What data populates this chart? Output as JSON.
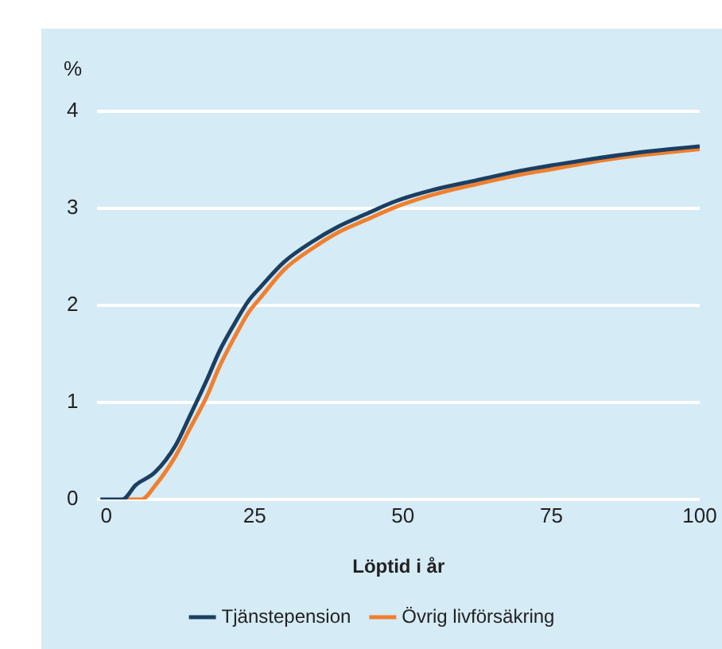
{
  "chart_data": {
    "type": "line",
    "xlabel": "Löptid i år",
    "ylabel": "%",
    "xlim": [
      -1.5,
      100
    ],
    "xticks": [
      0,
      25,
      50,
      75,
      100
    ],
    "ylim": [
      0,
      4
    ],
    "yticks": [
      0,
      1,
      2,
      3,
      4
    ],
    "grid": "y",
    "legend": "bottom",
    "marker": "none",
    "line_style": "solid",
    "series": [
      {
        "name": "Tjänstepension",
        "color": "#1b3f63",
        "x": [
          -1,
          2.7,
          5,
          8.2,
          11.7,
          14,
          17,
          19,
          21.5,
          24,
          26,
          30,
          34.8,
          39,
          43.7,
          49,
          55,
          62.4,
          70,
          75.7,
          82,
          89,
          95,
          100
        ],
        "values": [
          0,
          0,
          0.15,
          0.28,
          0.56,
          0.85,
          1.24,
          1.52,
          1.8,
          2.05,
          2.19,
          2.45,
          2.66,
          2.81,
          2.94,
          3.08,
          3.19,
          3.29,
          3.39,
          3.45,
          3.51,
          3.57,
          3.61,
          3.64
        ]
      },
      {
        "name": "Övrig livförsäkring",
        "color": "#f07f2e",
        "x": [
          2.5,
          5.9,
          8.2,
          11.7,
          14,
          17,
          19,
          21.5,
          24,
          26,
          30,
          34.8,
          39,
          43.7,
          49,
          55,
          62.4,
          70,
          75.7,
          82,
          89,
          95,
          100
        ],
        "values": [
          0,
          0,
          0.14,
          0.45,
          0.72,
          1.07,
          1.36,
          1.66,
          1.93,
          2.08,
          2.37,
          2.59,
          2.75,
          2.88,
          3.02,
          3.14,
          3.25,
          3.35,
          3.41,
          3.48,
          3.54,
          3.58,
          3.61
        ]
      }
    ]
  }
}
